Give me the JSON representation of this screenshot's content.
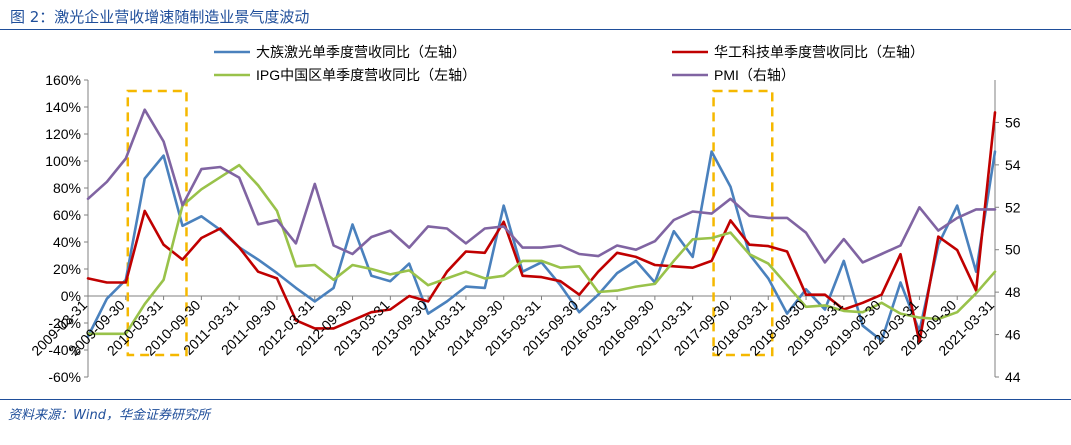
{
  "header": {
    "title": "图 2：激光企业营收增速随制造业景气度波动"
  },
  "footer": {
    "source": "资料来源：Wind，华金证券研究所"
  },
  "colors": {
    "han": "#4a81bd",
    "hgtech": "#c00000",
    "ipg": "#99c24a",
    "pmi": "#8064a2",
    "highlight": "#f5b800",
    "accent": "#1f4e9a"
  },
  "chart_data": {
    "type": "line",
    "title": "",
    "x": [
      "2009-03-31",
      "2009-06-30",
      "2009-09-30",
      "2009-12-31",
      "2010-03-31",
      "2010-06-30",
      "2010-09-30",
      "2010-12-31",
      "2011-03-31",
      "2011-06-30",
      "2011-09-30",
      "2011-12-31",
      "2012-03-31",
      "2012-06-30",
      "2012-09-30",
      "2012-12-31",
      "2013-03-31",
      "2013-06-30",
      "2013-09-30",
      "2013-12-31",
      "2014-03-31",
      "2014-06-30",
      "2014-09-30",
      "2014-12-31",
      "2015-03-31",
      "2015-06-30",
      "2015-09-30",
      "2015-12-31",
      "2016-03-31",
      "2016-06-30",
      "2016-09-30",
      "2016-12-31",
      "2017-03-31",
      "2017-06-30",
      "2017-09-30",
      "2017-12-31",
      "2018-03-31",
      "2018-06-30",
      "2018-09-30",
      "2018-12-31",
      "2019-03-31",
      "2019-06-30",
      "2019-09-30",
      "2019-12-31",
      "2020-03-31",
      "2020-06-30",
      "2020-09-30",
      "2020-12-31",
      "2021-03-31"
    ],
    "x_tick_labels": [
      "2009-03-31",
      "2009-09-30",
      "2010-03-31",
      "2010-09-30",
      "2011-03-31",
      "2011-09-30",
      "2012-03-31",
      "2012-09-30",
      "2013-03-31",
      "2013-09-30",
      "2014-03-31",
      "2014-09-30",
      "2015-03-31",
      "2015-09-30",
      "2016-03-31",
      "2016-09-30",
      "2017-03-31",
      "2017-09-30",
      "2018-03-31",
      "2018-09-30",
      "2019-03-31",
      "2019-09-30",
      "2020-03-31",
      "2020-09-30",
      "2021-03-31"
    ],
    "y_left": {
      "min": -0.6,
      "max": 1.6,
      "step": 0.2,
      "ticks": [
        "-60%",
        "-40%",
        "-20%",
        "0%",
        "20%",
        "40%",
        "60%",
        "80%",
        "100%",
        "120%",
        "140%",
        "160%"
      ]
    },
    "y_right": {
      "min": 44,
      "max": 58,
      "ticks": [
        "44",
        "46",
        "48",
        "50",
        "52",
        "54",
        "56"
      ]
    },
    "highlight_ranges": [
      {
        "from": "2009-09-30",
        "to": "2010-06-30"
      },
      {
        "from": "2017-06-30",
        "to": "2018-03-31"
      }
    ],
    "series": [
      {
        "name": "大族激光单季度营收同比（左轴）",
        "axis": "left",
        "values": [
          -0.3,
          -0.02,
          0.12,
          0.87,
          1.04,
          0.52,
          0.59,
          0.49,
          0.36,
          0.27,
          0.17,
          0.06,
          -0.04,
          0.06,
          0.53,
          0.15,
          0.11,
          0.24,
          -0.13,
          -0.04,
          0.07,
          0.06,
          0.67,
          0.18,
          0.25,
          0.08,
          -0.12,
          0.01,
          0.17,
          0.26,
          0.1,
          0.48,
          0.29,
          1.07,
          0.81,
          0.31,
          0.13,
          -0.13,
          0.05,
          -0.1,
          0.26,
          -0.22,
          -0.33,
          0.1,
          -0.26,
          0.38,
          0.67,
          0.18,
          1.07
        ]
      },
      {
        "name": "华工科技单季度营收同比（左轴）",
        "axis": "left",
        "values": [
          0.13,
          0.1,
          0.1,
          0.63,
          0.38,
          0.27,
          0.43,
          0.5,
          0.36,
          0.18,
          0.13,
          -0.18,
          -0.24,
          -0.24,
          -0.18,
          -0.12,
          -0.1,
          0.0,
          -0.04,
          0.18,
          0.33,
          0.32,
          0.55,
          0.15,
          0.14,
          0.11,
          0.01,
          0.18,
          0.32,
          0.29,
          0.23,
          0.22,
          0.21,
          0.26,
          0.56,
          0.38,
          0.37,
          0.33,
          0.01,
          0.01,
          -0.1,
          -0.05,
          0.01,
          0.31,
          -0.34,
          0.44,
          0.34,
          0.04,
          1.36
        ]
      },
      {
        "name": "IPG中国区单季度营收同比（左轴）",
        "axis": "left",
        "values": [
          -0.28,
          -0.28,
          -0.28,
          -0.06,
          0.12,
          0.67,
          0.79,
          0.88,
          0.97,
          0.82,
          0.63,
          0.22,
          0.23,
          0.12,
          0.23,
          0.2,
          0.16,
          0.19,
          0.08,
          0.13,
          0.18,
          0.13,
          0.15,
          0.26,
          0.26,
          0.21,
          0.22,
          0.03,
          0.04,
          0.07,
          0.09,
          0.26,
          0.42,
          0.43,
          0.47,
          0.31,
          0.24,
          0.08,
          -0.08,
          -0.07,
          -0.11,
          -0.12,
          -0.05,
          -0.13,
          -0.16,
          -0.17,
          -0.12,
          0.02,
          0.18
        ]
      },
      {
        "name": "PMI（右轴）",
        "axis": "right",
        "values": [
          52.4,
          53.2,
          54.3,
          56.6,
          55.1,
          52.1,
          53.8,
          53.9,
          53.4,
          51.2,
          51.4,
          50.3,
          53.1,
          50.2,
          49.8,
          50.6,
          50.9,
          50.1,
          51.1,
          51.0,
          50.3,
          51.0,
          51.1,
          50.1,
          50.1,
          50.2,
          49.8,
          49.7,
          50.2,
          50.0,
          50.4,
          51.4,
          51.8,
          51.7,
          52.4,
          51.6,
          51.5,
          51.5,
          50.8,
          49.4,
          50.5,
          49.4,
          49.8,
          50.2,
          52.0,
          50.9,
          51.5,
          51.9,
          51.9
        ]
      }
    ]
  }
}
